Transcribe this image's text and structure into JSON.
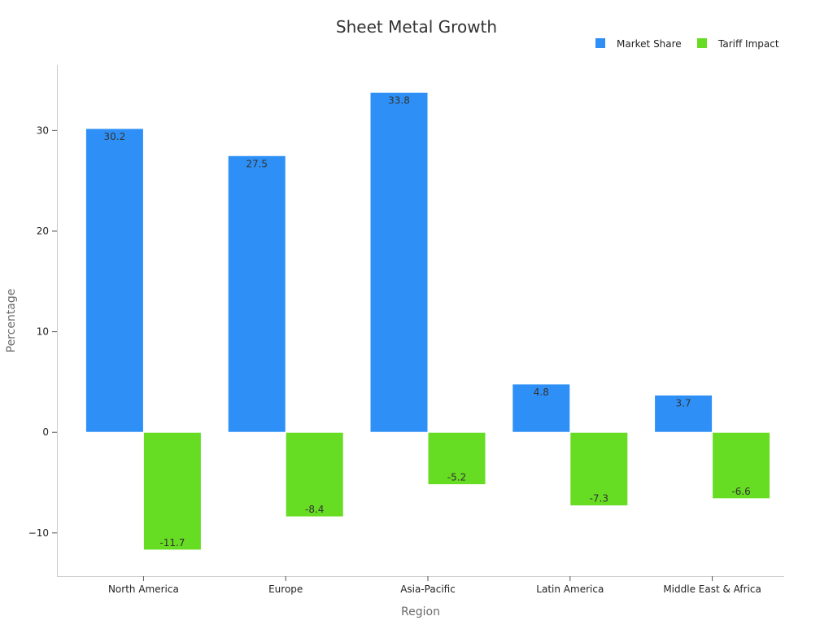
{
  "chart_data": {
    "type": "bar",
    "title": "Sheet Metal Growth",
    "xlabel": "Region",
    "ylabel": "Percentage",
    "categories": [
      "North America",
      "Europe",
      "Asia-Pacific",
      "Latin America",
      "Middle East & Africa"
    ],
    "series": [
      {
        "name": "Market Share",
        "color": "#2e90f7",
        "values": [
          30.2,
          27.5,
          33.8,
          4.8,
          3.7
        ]
      },
      {
        "name": "Tariff Impact",
        "color": "#66dc22",
        "values": [
          -11.7,
          -8.4,
          -5.2,
          -7.3,
          -6.6
        ]
      }
    ],
    "ylim": [
      -14.3,
      36.5
    ],
    "yticks": [
      -10,
      0,
      10,
      20,
      30
    ],
    "ytick_labels": [
      "−10",
      "0",
      "10",
      "20",
      "30"
    ],
    "legend_position": "top-right",
    "grid": false
  }
}
